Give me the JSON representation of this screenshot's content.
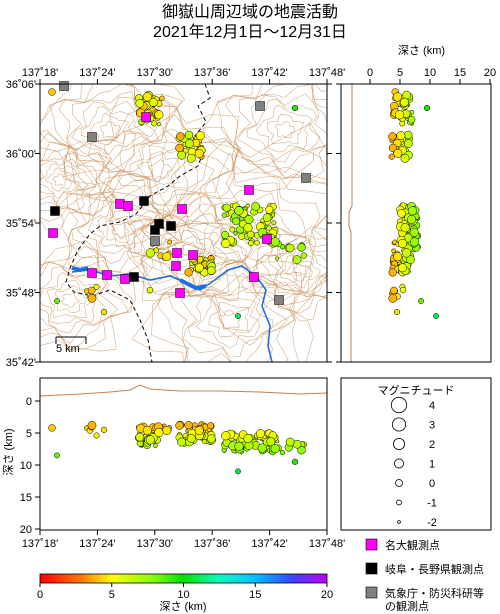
{
  "title": {
    "line1": "御嶽山周辺域の地震活動",
    "line2": "2021年12月1日～12月31日"
  },
  "map": {
    "lon_ticks": [
      "137˚18'",
      "137˚24'",
      "137˚30'",
      "137˚36'",
      "137˚42'",
      "137˚48'"
    ],
    "lat_ticks": [
      "36˚06'",
      "36˚00'",
      "35˚54'",
      "35˚48'",
      "35˚42'"
    ],
    "scale_label": "5 km"
  },
  "depth_section": {
    "axis_label": "深さ (km)",
    "ticks": [
      "0",
      "5",
      "10",
      "15",
      "20"
    ]
  },
  "lon_section": {
    "axis_label": "深さ (km)",
    "depth_ticks": [
      "0",
      "5",
      "10",
      "15",
      "20"
    ],
    "lon_ticks": [
      "137˚18'",
      "137˚24'",
      "137˚30'",
      "137˚36'",
      "137˚42'",
      "137˚48'"
    ]
  },
  "magnitude_legend": {
    "title": "マグニチュード",
    "items": [
      "4",
      "3",
      "2",
      "1",
      "0",
      "-1",
      "-2"
    ]
  },
  "station_legend": [
    {
      "label": "名大観測点",
      "color": "#ff00ff"
    },
    {
      "label": "岐阜・長野県観測点",
      "color": "#000000"
    },
    {
      "label": "気象庁・防災科研等",
      "label2": "の観測点",
      "color": "#808080"
    }
  ],
  "colorbar": {
    "ticks": [
      "0",
      "5",
      "10",
      "15",
      "20"
    ],
    "label": "深さ (km)"
  }
}
